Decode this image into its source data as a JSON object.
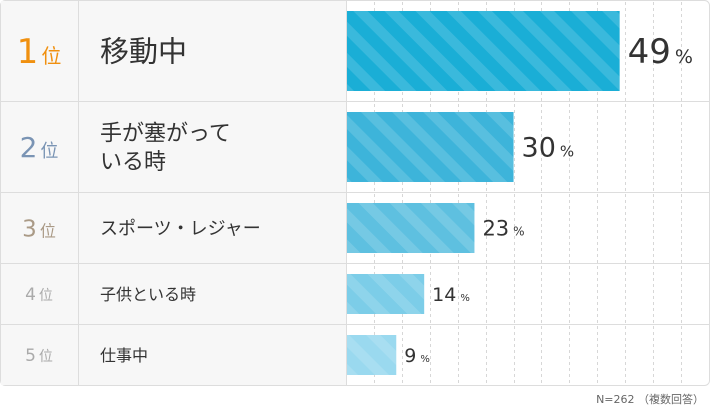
{
  "chart_data": {
    "type": "bar",
    "orientation": "horizontal",
    "categories": [
      {
        "rank_num": "1",
        "rank_suffix": "位",
        "label_lines": [
          "移動中"
        ],
        "value": 49,
        "unit": "%"
      },
      {
        "rank_num": "2",
        "rank_suffix": "位",
        "label_lines": [
          "手が塞がって",
          "いる時"
        ],
        "value": 30,
        "unit": "%"
      },
      {
        "rank_num": "3",
        "rank_suffix": "位",
        "label_lines": [
          "スポーツ・レジャー"
        ],
        "value": 23,
        "unit": "%"
      },
      {
        "rank_num": "4",
        "rank_suffix": "位",
        "label_lines": [
          "子供といる時"
        ],
        "value": 14,
        "unit": "%"
      },
      {
        "rank_num": "5",
        "rank_suffix": "位",
        "label_lines": [
          "仕事中"
        ],
        "value": 9,
        "unit": "%"
      }
    ],
    "xlim": [
      0,
      65
    ],
    "grid": true,
    "note": "N=262 （複数回答）"
  },
  "colors": {
    "rank": [
      "#f0900f",
      "#7a94b4",
      "#aa9a86",
      "#aaaaaa",
      "#aaaaaa"
    ],
    "bar": [
      "#1aaed6",
      "#3db4da",
      "#5ec0e0",
      "#7ccde8",
      "#9ad9ef"
    ],
    "row_bg": "#f7f7f7",
    "border": "#dddddd",
    "grid": "#d7d7d7",
    "label": "#333333"
  }
}
